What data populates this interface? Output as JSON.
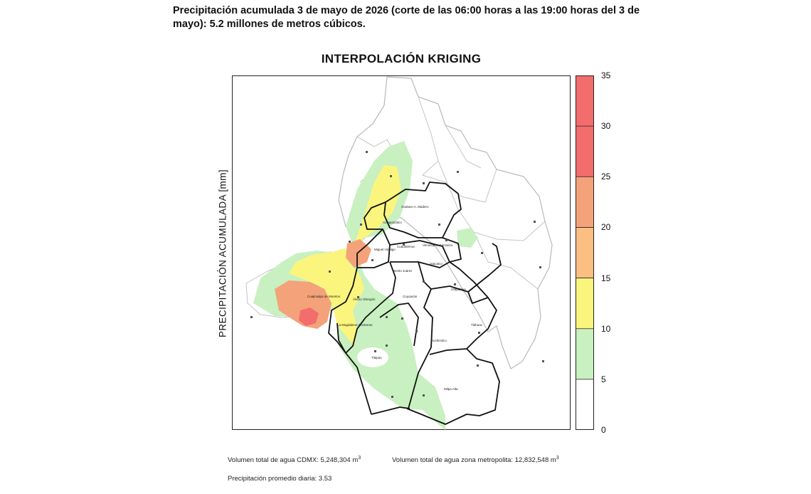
{
  "header": {
    "text": "Precipitación acumulada 3 de mayo de 2026 (corte de las 06:00 horas a las 19:00 horas del 3 de mayo): 5.2 millones de metros cúbicos."
  },
  "map": {
    "title": "INTERPOLACIÓN KRIGING",
    "y_axis_label": "PRECIPITACIÓN ACUMULADA [mm]",
    "labels": [
      "Gustavo A. Madero",
      "Azcapotzalco",
      "Miguel Hidalgo",
      "Cuauhtémoc",
      "Venustiano Carranza",
      "Benito Juárez",
      "Iztacalco",
      "Iztapalapa",
      "Coyoacán",
      "Álvaro Obregón",
      "Cuajimalpa de Morelos",
      "La Magdalena Contreras",
      "Tlalpan",
      "Xochimilco",
      "Tláhuac",
      "Milpa Alta"
    ]
  },
  "legend": {
    "ticks": [
      "0",
      "5",
      "10",
      "15",
      "20",
      "25",
      "30",
      "35"
    ],
    "colors": [
      "#ffffff",
      "#c8f0c0",
      "#fbf57e",
      "#fbbf83",
      "#f4a27a",
      "#f36d6d"
    ]
  },
  "footer": {
    "cdmx_label": "Volumen total de agua CDMX: ",
    "cdmx_value": "5,248,304 m",
    "metro_label": "Volumen total de agua zona metropolita: ",
    "metro_value": "12,832,548 m",
    "unit_sup": "3",
    "avg_label": "Precipitación promedio diaria: ",
    "avg_value": "3.53"
  }
}
